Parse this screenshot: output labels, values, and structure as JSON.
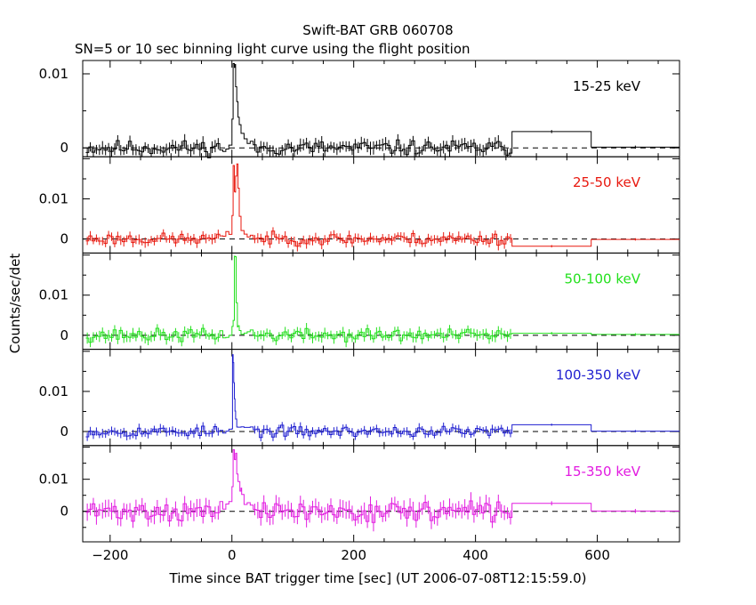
{
  "chart_data": {
    "type": "line",
    "title": "Swift-BAT GRB 060708",
    "subtitle": "SN=5 or 10 sec binning light curve using the flight position",
    "xlabel": "Time since BAT trigger time [sec] (UT 2006-07-08T12:15:59.0)",
    "ylabel": "Counts/sec/det",
    "xlim": [
      -245,
      735
    ],
    "x_ticks": [
      -200,
      0,
      200,
      400,
      600
    ],
    "y_ticks": [
      0,
      0.01
    ],
    "baseline": 0,
    "panels": [
      {
        "name": "15-25 keV",
        "color": "#000000",
        "ylim": [
          -0.0012,
          0.0118
        ],
        "seed": 11,
        "noise": 0.0007,
        "burst": [
          [
            -5,
            0.0003
          ],
          [
            0,
            0.004
          ],
          [
            2,
            0.0115
          ],
          [
            4,
            0.011
          ],
          [
            6,
            0.008
          ],
          [
            8,
            0.006
          ],
          [
            10,
            0.004
          ],
          [
            12,
            0.003
          ],
          [
            15,
            0.002
          ],
          [
            20,
            0.0012
          ],
          [
            25,
            0.0008
          ],
          [
            30,
            0.0004
          ]
        ],
        "long_bins": [
          [
            460,
            590,
            0.0022
          ],
          [
            590,
            735,
            0.0001
          ]
        ]
      },
      {
        "name": "25-50 keV",
        "color": "#e8190f",
        "ylim": [
          -0.0035,
          0.0205
        ],
        "seed": 23,
        "noise": 0.001,
        "burst": [
          [
            -15,
            0.0008
          ],
          [
            -10,
            0.0012
          ],
          [
            -5,
            0.0015
          ],
          [
            0,
            0.006
          ],
          [
            2,
            0.0185
          ],
          [
            4,
            0.012
          ],
          [
            6,
            0.016
          ],
          [
            8,
            0.019
          ],
          [
            10,
            0.013
          ],
          [
            12,
            0.006
          ],
          [
            15,
            0.002
          ],
          [
            20,
            0.001
          ]
        ],
        "long_bins": [
          [
            460,
            590,
            -0.0018
          ],
          [
            590,
            735,
            -0.0001
          ]
        ]
      },
      {
        "name": "50-100 keV",
        "color": "#22e01c",
        "ylim": [
          -0.0035,
          0.0205
        ],
        "seed": 37,
        "noise": 0.0011,
        "burst": [
          [
            -5,
            0.0005
          ],
          [
            0,
            0.002
          ],
          [
            2,
            0.0035
          ],
          [
            4,
            0.0195
          ],
          [
            5,
            0.0195
          ],
          [
            6,
            0.0195
          ],
          [
            7,
            0.008
          ],
          [
            9,
            0.002
          ],
          [
            12,
            0.0008
          ]
        ],
        "long_bins": [
          [
            460,
            590,
            0.0005
          ],
          [
            590,
            735,
            0.0002
          ]
        ]
      },
      {
        "name": "100-350 keV",
        "color": "#1f1fd0",
        "ylim": [
          -0.0035,
          0.0205
        ],
        "seed": 53,
        "noise": 0.0009,
        "burst": [
          [
            -3,
            0.0003
          ],
          [
            0,
            0.0005
          ],
          [
            1,
            0.019
          ],
          [
            2,
            0.017
          ],
          [
            3,
            0.012
          ],
          [
            4,
            0.008
          ],
          [
            5,
            0.005
          ],
          [
            6,
            0.003
          ],
          [
            8,
            0.001
          ]
        ],
        "long_bins": [
          [
            460,
            590,
            0.0017
          ],
          [
            590,
            735,
            0.0001
          ]
        ]
      },
      {
        "name": "15-350 keV",
        "color": "#e21be0",
        "ylim": [
          -0.0095,
          0.0205
        ],
        "seed": 71,
        "noise": 0.0022,
        "burst": [
          [
            -10,
            0.002
          ],
          [
            -5,
            0.003
          ],
          [
            0,
            0.008
          ],
          [
            2,
            0.0195
          ],
          [
            4,
            0.0165
          ],
          [
            6,
            0.0185
          ],
          [
            8,
            0.012
          ],
          [
            10,
            0.01
          ],
          [
            13,
            0.007
          ],
          [
            16,
            0.005
          ],
          [
            20,
            0.003
          ],
          [
            25,
            0.001
          ]
        ],
        "long_bins": [
          [
            460,
            590,
            0.0025
          ],
          [
            590,
            735,
            0.0001
          ]
        ]
      }
    ]
  }
}
